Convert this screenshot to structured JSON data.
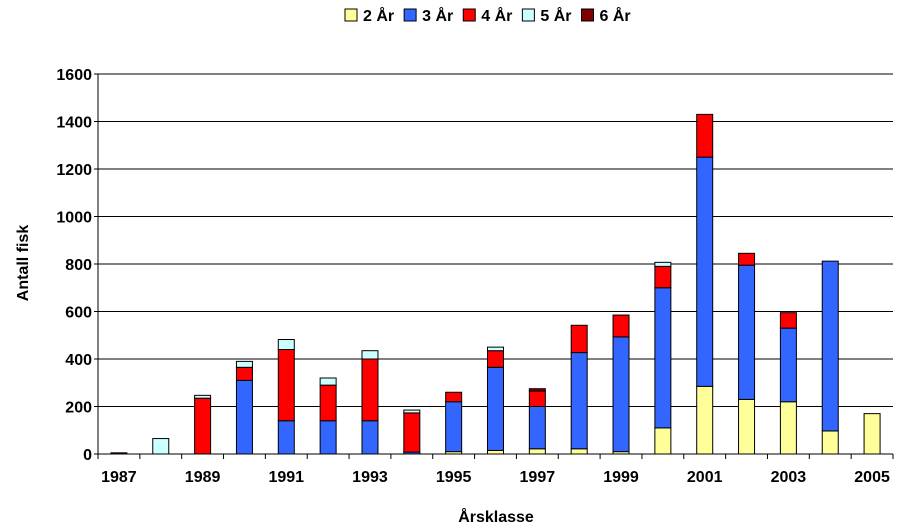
{
  "chart_data": {
    "type": "bar",
    "stacked": true,
    "title": "",
    "xlabel": "Årsklasse",
    "ylabel": "Antall fisk",
    "ylim": [
      0,
      1600
    ],
    "yticks": [
      "0",
      "200",
      "400",
      "600",
      "800",
      "1000",
      "1200",
      "1400",
      "1600"
    ],
    "grid": true,
    "legend_position": "top",
    "categories": [
      "1987",
      "1988",
      "1989",
      "1990",
      "1991",
      "1992",
      "1993",
      "1994",
      "1995",
      "1996",
      "1997",
      "1998",
      "1999",
      "2000",
      "2001",
      "2002",
      "2003",
      "2004",
      "2005"
    ],
    "xtick_labels": [
      "1987",
      "",
      "1989",
      "",
      "1991",
      "",
      "1993",
      "",
      "1995",
      "",
      "1997",
      "",
      "1999",
      "",
      "2001",
      "",
      "2003",
      "",
      "2005"
    ],
    "series": [
      {
        "name": "2 År",
        "color": "#FFFF99",
        "values": [
          0,
          0,
          0,
          0,
          0,
          0,
          0,
          0,
          10,
          15,
          22,
          22,
          10,
          110,
          285,
          230,
          220,
          97,
          170
        ]
      },
      {
        "name": "3 År",
        "color": "#3366FF",
        "values": [
          0,
          0,
          0,
          310,
          140,
          140,
          140,
          8,
          210,
          350,
          178,
          405,
          483,
          590,
          965,
          565,
          310,
          715,
          0
        ]
      },
      {
        "name": "4 År",
        "color": "#FF0000",
        "values": [
          0,
          0,
          235,
          55,
          300,
          150,
          260,
          165,
          40,
          70,
          65,
          115,
          92,
          90,
          180,
          50,
          65,
          0,
          0
        ]
      },
      {
        "name": "5 År",
        "color": "#CCFFFF",
        "values": [
          0,
          65,
          12,
          25,
          42,
          30,
          35,
          12,
          0,
          15,
          0,
          0,
          0,
          17,
          0,
          0,
          0,
          0,
          0
        ]
      },
      {
        "name": "6 År",
        "color": "#800000",
        "values": [
          5,
          0,
          0,
          0,
          0,
          0,
          0,
          0,
          0,
          0,
          10,
          0,
          0,
          0,
          0,
          0,
          0,
          0,
          0
        ]
      }
    ]
  }
}
